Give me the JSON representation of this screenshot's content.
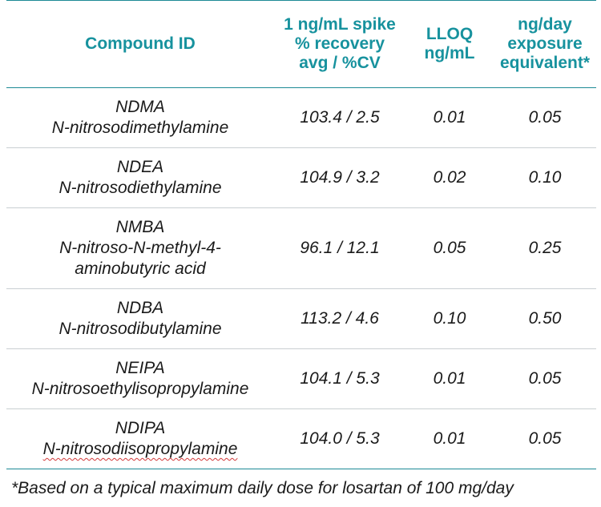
{
  "table": {
    "headers": [
      {
        "lines": [
          "Compound ID"
        ]
      },
      {
        "lines": [
          "1 ng/mL spike",
          "% recovery",
          "avg / %CV"
        ]
      },
      {
        "lines": [
          "LLOQ",
          "ng/mL"
        ]
      },
      {
        "lines": [
          "ng/day",
          "exposure",
          "equivalent*"
        ]
      }
    ],
    "rows": [
      {
        "compound": [
          "NDMA",
          "N-nitrosodimethylamine"
        ],
        "recovery": "103.4 / 2.5",
        "lloq": "0.01",
        "exposure": "0.05"
      },
      {
        "compound": [
          "NDEA",
          "N-nitrosodiethylamine"
        ],
        "recovery": "104.9 / 3.2",
        "lloq": "0.02",
        "exposure": "0.10"
      },
      {
        "compound": [
          "NMBA",
          "N-nitroso-N-methyl-4-",
          "aminobutyric acid"
        ],
        "recovery": "96.1 / 12.1",
        "lloq": "0.05",
        "exposure": "0.25"
      },
      {
        "compound": [
          "NDBA",
          "N-nitrosodibutylamine"
        ],
        "recovery": "113.2 / 4.6",
        "lloq": "0.10",
        "exposure": "0.50"
      },
      {
        "compound": [
          "NEIPA",
          "N-nitrosoethylisopropylamine"
        ],
        "recovery": "104.1 / 5.3",
        "lloq": "0.01",
        "exposure": "0.05"
      },
      {
        "compound": [
          "NDIPA",
          "N-nitrosodiisopropylamine"
        ],
        "recovery": "104.0 / 5.3",
        "lloq": "0.01",
        "exposure": "0.05"
      }
    ]
  },
  "footnote": "*Based on a typical maximum daily dose for losartan of 100 mg/day",
  "colors": {
    "header_text": "#17929e",
    "rule": "#1d8a95",
    "row_divider": "#c9cfd2",
    "spellcheck_squiggle": "#d23a3a"
  }
}
